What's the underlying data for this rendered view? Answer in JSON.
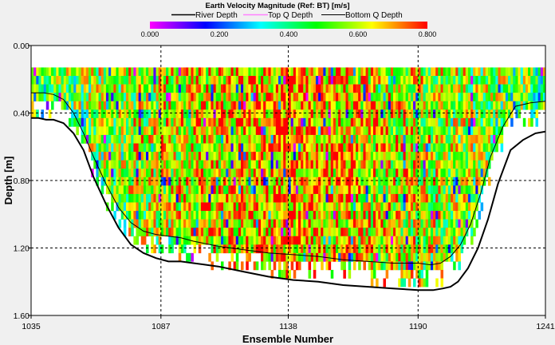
{
  "chart_data": {
    "type": "heatmap",
    "title": "Earth Velocity Magnitude (Ref: BT) [m/s]",
    "xlabel": "Ensemble Number",
    "ylabel": "Depth [m]",
    "xlim": [
      1035,
      1241
    ],
    "ylim": [
      0.0,
      1.6
    ],
    "y_inverted": true,
    "grid": true,
    "xticks": [
      "1035",
      "1087",
      "1138",
      "1190",
      "1241"
    ],
    "xtick_values": [
      1035,
      1087,
      1138,
      1190,
      1241
    ],
    "yticks": [
      "0.00",
      "0.40",
      "0.80",
      "1.20",
      "1.60"
    ],
    "ytick_values": [
      0.0,
      0.4,
      0.8,
      1.2,
      1.6
    ],
    "colorbar": {
      "range": [
        0.0,
        0.8
      ],
      "ticks": [
        "0.000",
        "0.200",
        "0.400",
        "0.600",
        "0.800"
      ],
      "tick_values": [
        0.0,
        0.2,
        0.4,
        0.6,
        0.8
      ],
      "colors": [
        "#ff00ff",
        "#8000ff",
        "#0000ff",
        "#0080ff",
        "#00ffff",
        "#00ff80",
        "#00ff00",
        "#80ff00",
        "#ffff00",
        "#ff8000",
        "#ff0000"
      ]
    },
    "legend": {
      "position": "top",
      "entries": [
        {
          "name": "River Depth",
          "color": "#000000"
        },
        {
          "name": "Top Q Depth",
          "color": "#ff80ff"
        },
        {
          "name": "Bottom Q Depth",
          "color": "#000000"
        }
      ]
    },
    "cell_grid": {
      "ensemble_width": 1,
      "bin_size_m": 0.05,
      "first_bin_depth_m": 0.13
    },
    "series": [
      {
        "name": "River Depth",
        "ensembles": [
          1035,
          1038,
          1041,
          1044,
          1048,
          1052,
          1056,
          1060,
          1065,
          1070,
          1075,
          1080,
          1085,
          1090,
          1095,
          1100,
          1110,
          1120,
          1130,
          1140,
          1150,
          1160,
          1170,
          1180,
          1190,
          1196,
          1200,
          1203,
          1206,
          1210,
          1214,
          1218,
          1222,
          1227,
          1232,
          1237,
          1241
        ],
        "depths": [
          0.43,
          0.43,
          0.44,
          0.44,
          0.46,
          0.52,
          0.62,
          0.78,
          0.94,
          1.08,
          1.18,
          1.23,
          1.26,
          1.28,
          1.28,
          1.29,
          1.31,
          1.34,
          1.37,
          1.39,
          1.4,
          1.42,
          1.43,
          1.44,
          1.45,
          1.45,
          1.44,
          1.43,
          1.4,
          1.32,
          1.2,
          1.03,
          0.82,
          0.62,
          0.56,
          0.52,
          0.51
        ]
      },
      {
        "name": "Bottom Q Depth",
        "ensembles": [
          1035,
          1040,
          1044,
          1048,
          1052,
          1056,
          1060,
          1065,
          1070,
          1075,
          1080,
          1085,
          1090,
          1095,
          1100,
          1110,
          1120,
          1130,
          1140,
          1150,
          1160,
          1170,
          1180,
          1190,
          1195,
          1199,
          1203,
          1207,
          1211,
          1215,
          1219,
          1224,
          1229,
          1235,
          1241
        ],
        "depths": [
          0.28,
          0.28,
          0.29,
          0.32,
          0.4,
          0.52,
          0.66,
          0.82,
          0.96,
          1.05,
          1.1,
          1.12,
          1.13,
          1.14,
          1.16,
          1.19,
          1.21,
          1.23,
          1.24,
          1.25,
          1.27,
          1.28,
          1.29,
          1.29,
          1.3,
          1.29,
          1.25,
          1.18,
          1.06,
          0.88,
          0.66,
          0.48,
          0.36,
          0.34,
          0.33
        ]
      },
      {
        "name": "Top Q Depth",
        "ensembles": [
          1035,
          1241
        ],
        "depths": [
          0.0,
          0.0
        ]
      }
    ]
  }
}
